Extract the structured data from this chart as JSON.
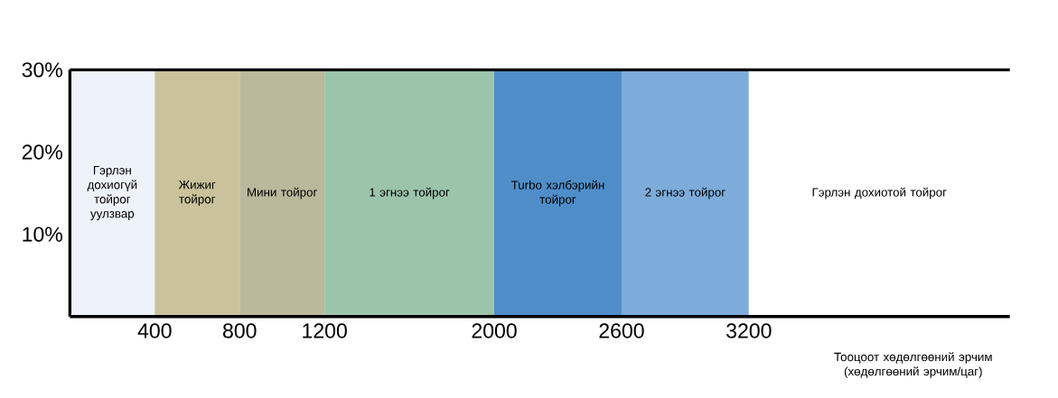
{
  "chart_data": {
    "type": "area",
    "xlabel": "Тооцоот хөдөлгөөний эрчим (хөдөлгөөний эрчим/цаг)",
    "xlim": [
      0,
      4430
    ],
    "ylim": [
      0,
      30
    ],
    "xticks": [
      {
        "value": 0,
        "label": null
      },
      {
        "value": 400,
        "label": "400"
      },
      {
        "value": 800,
        "label": "800"
      },
      {
        "value": 1200,
        "label": "1200"
      },
      {
        "value": 2000,
        "label": "2000"
      },
      {
        "value": 2600,
        "label": "2600"
      },
      {
        "value": 3200,
        "label": "3200"
      }
    ],
    "yticks": [
      {
        "value": 10,
        "label": "10%"
      },
      {
        "value": 20,
        "label": "20%"
      },
      {
        "value": 30,
        "label": "30%"
      }
    ],
    "ref_lines": [
      {
        "axis": "y",
        "value": 30,
        "color": "#000000"
      }
    ],
    "series": [
      {
        "name": "Гэрлэн дохиогүй тойрог уулзвар",
        "color": "#eef3fa",
        "x": [
          0,
          400
        ],
        "values": [
          30,
          30
        ]
      },
      {
        "name": "Жижиг тойрог",
        "color": "#c9c29b",
        "x": [
          400,
          800
        ],
        "values": [
          30,
          30
        ]
      },
      {
        "name": "Мини тойрог",
        "color": "#bab99b",
        "x": [
          800,
          1200
        ],
        "values": [
          30,
          30
        ]
      },
      {
        "name": "1 эгнээ тойрог",
        "color": "#9cc4aa",
        "x": [
          1200,
          2000
        ],
        "values": [
          30,
          30
        ]
      },
      {
        "name": "2 эгнээ тойрог",
        "color": "#7dacdb",
        "x": [
          2000,
          3200
        ],
        "values": [
          30,
          30
        ]
      },
      {
        "name": "Turbo хэлбэрийн тойрог",
        "color": "#4f8ec9",
        "x": [
          2000,
          2600
        ],
        "values": [
          30,
          30
        ]
      },
      {
        "name": "Гэрлэн дохиотой тойрог",
        "color": "#ffffff",
        "x": [
          3200,
          4430
        ],
        "values": [
          30,
          30
        ]
      }
    ]
  }
}
